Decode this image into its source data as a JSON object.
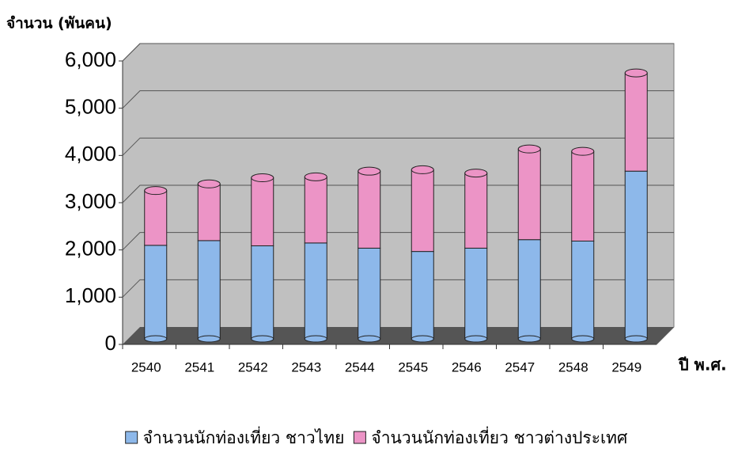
{
  "chart_data": {
    "type": "bar",
    "stacked": true,
    "y_label": "จำนวน (พันคน)",
    "x_label": "ปี พ.ศ.",
    "categories": [
      "2540",
      "2541",
      "2542",
      "2543",
      "2544",
      "2545",
      "2546",
      "2547",
      "2548",
      "2549"
    ],
    "series": [
      {
        "name": "จำนวนนักท่องเที่ยว ชาวไทย",
        "color": "#8db8ea",
        "values": [
          1980,
          2080,
          1970,
          2030,
          1920,
          1850,
          1920,
          2100,
          2070,
          3550
        ]
      },
      {
        "name": "จำนวนนักท่องเที่ยว ชาวต่างประเทศ",
        "color": "#ec94c6",
        "values": [
          1160,
          1200,
          1440,
          1400,
          1630,
          1730,
          1590,
          1920,
          1900,
          2080
        ]
      }
    ],
    "ylim": [
      0,
      6000
    ],
    "yticks": [
      0,
      {
        "value": 1000,
        "label": "1,000"
      },
      {
        "value": 2000,
        "label": "2,000"
      },
      {
        "value": 3000,
        "label": "3,000"
      },
      {
        "value": 4000,
        "label": "4,000"
      },
      {
        "value": 5000,
        "label": "5,000"
      },
      {
        "value": 6000,
        "label": "6,000"
      }
    ],
    "grid": true,
    "legend": "bottom"
  }
}
